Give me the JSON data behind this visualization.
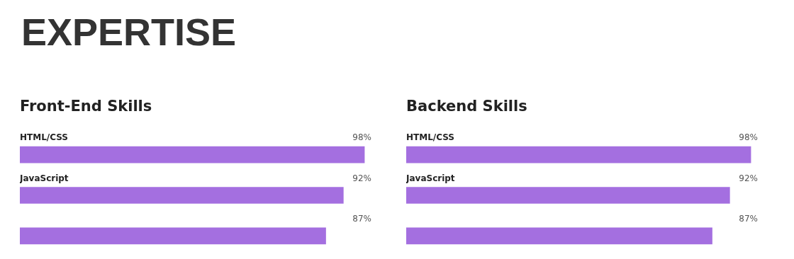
{
  "chart_data": [
    {
      "type": "bar",
      "orientation": "horizontal",
      "title": "EXPERTISE",
      "subtitle": "Front-End Skills",
      "categories": [
        "HTML/CSS",
        "JavaScript",
        null
      ],
      "values": [
        98,
        92,
        87
      ],
      "value_labels": [
        "98%",
        "92%",
        "87%"
      ],
      "color": "#a46fe0"
    },
    {
      "type": "bar",
      "orientation": "horizontal",
      "subtitle": "Backend Skills",
      "categories": [
        "HTML/CSS",
        "JavaScript",
        null
      ],
      "values": [
        98,
        92,
        87
      ],
      "value_labels": [
        "98%",
        "92%",
        "87%"
      ],
      "color": "#a46fe0"
    }
  ]
}
